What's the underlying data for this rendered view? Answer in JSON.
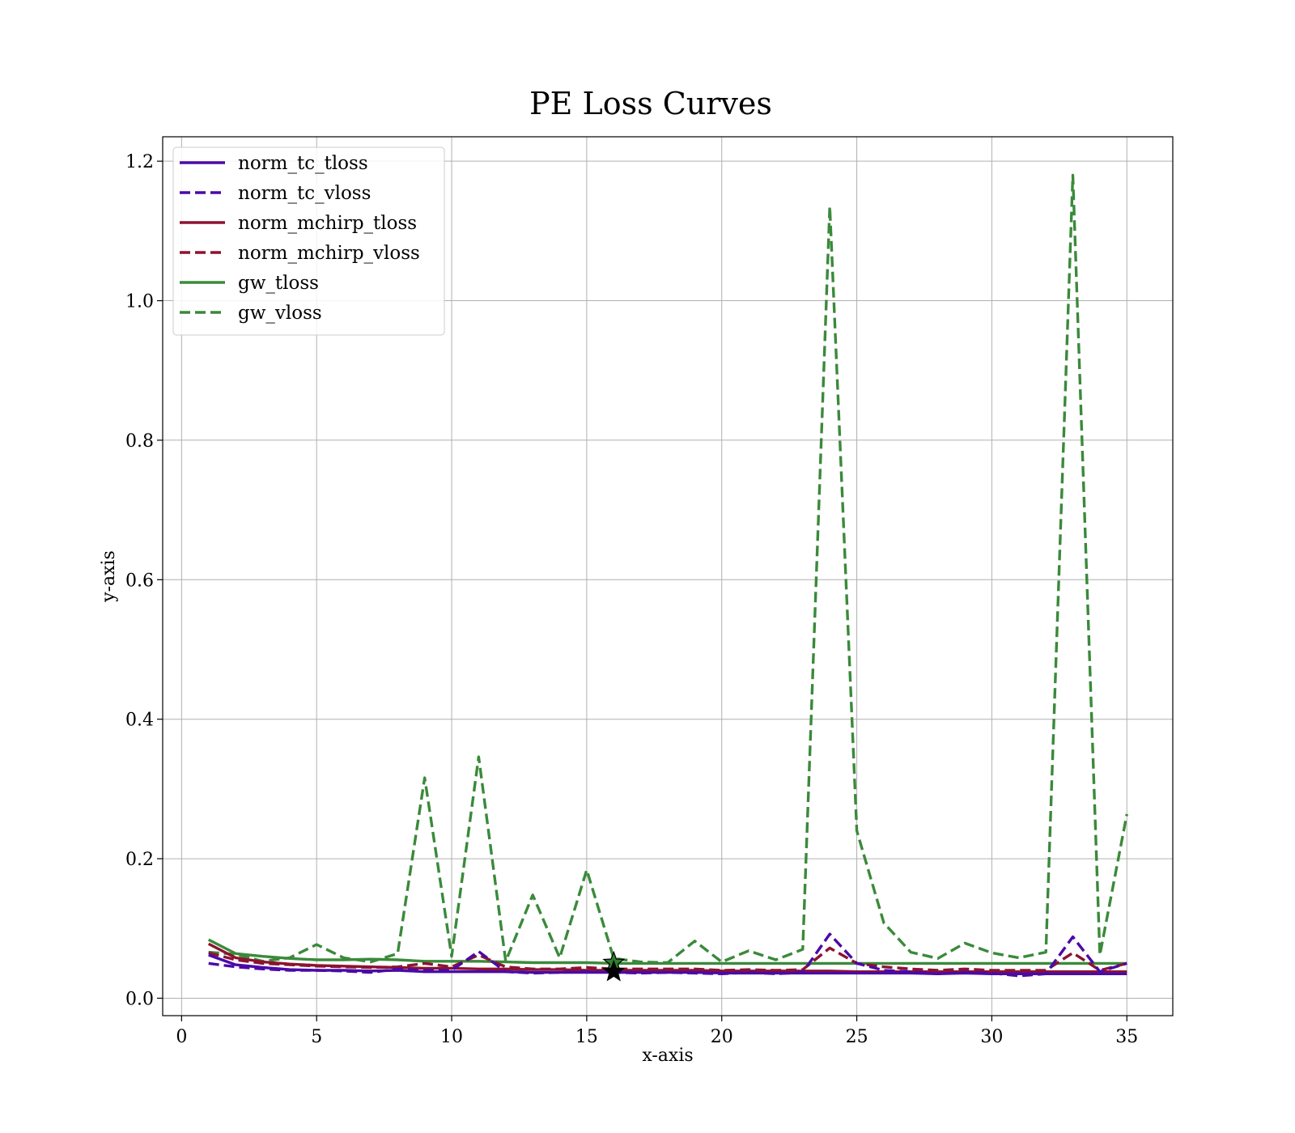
{
  "chart_data": {
    "type": "line",
    "title": "PE Loss Curves",
    "xlabel": "x-axis",
    "ylabel": "y-axis",
    "xlim": [
      -0.7,
      36.7
    ],
    "ylim": [
      -0.025,
      1.235
    ],
    "xticks": [
      0,
      5,
      10,
      15,
      20,
      25,
      30,
      35
    ],
    "xtick_labels": [
      "0",
      "5",
      "10",
      "15",
      "20",
      "25",
      "30",
      "35"
    ],
    "yticks": [
      0.0,
      0.2,
      0.4,
      0.6,
      0.8,
      1.0,
      1.2
    ],
    "ytick_labels": [
      "0.0",
      "0.2",
      "0.4",
      "0.6",
      "0.8",
      "1.0",
      "1.2"
    ],
    "grid": true,
    "legend_position": "top-left",
    "x": [
      1,
      2,
      3,
      4,
      5,
      6,
      7,
      8,
      9,
      10,
      11,
      12,
      13,
      14,
      15,
      16,
      17,
      18,
      19,
      20,
      21,
      22,
      23,
      24,
      25,
      26,
      27,
      28,
      29,
      30,
      31,
      32,
      33,
      34,
      35
    ],
    "series": [
      {
        "name": "norm_tc_tloss",
        "color": "#4b0aa8",
        "style": "solid",
        "values": [
          0.062,
          0.048,
          0.044,
          0.041,
          0.04,
          0.04,
          0.039,
          0.04,
          0.038,
          0.038,
          0.038,
          0.038,
          0.037,
          0.037,
          0.037,
          0.037,
          0.037,
          0.037,
          0.037,
          0.036,
          0.036,
          0.036,
          0.036,
          0.036,
          0.036,
          0.036,
          0.036,
          0.035,
          0.036,
          0.035,
          0.035,
          0.035,
          0.035,
          0.035,
          0.035
        ]
      },
      {
        "name": "norm_tc_vloss",
        "color": "#4b0aa8",
        "style": "dashed",
        "values": [
          0.05,
          0.045,
          0.042,
          0.04,
          0.04,
          0.039,
          0.037,
          0.042,
          0.04,
          0.04,
          0.067,
          0.038,
          0.036,
          0.037,
          0.038,
          0.037,
          0.036,
          0.037,
          0.036,
          0.035,
          0.037,
          0.035,
          0.037,
          0.092,
          0.05,
          0.04,
          0.038,
          0.035,
          0.037,
          0.036,
          0.032,
          0.035,
          0.088,
          0.038,
          0.05
        ]
      },
      {
        "name": "norm_mchirp_tloss",
        "color": "#8c1330",
        "style": "solid",
        "values": [
          0.078,
          0.058,
          0.052,
          0.049,
          0.047,
          0.046,
          0.045,
          0.044,
          0.043,
          0.043,
          0.042,
          0.042,
          0.041,
          0.041,
          0.04,
          0.04,
          0.04,
          0.04,
          0.04,
          0.039,
          0.039,
          0.039,
          0.039,
          0.039,
          0.038,
          0.038,
          0.038,
          0.038,
          0.038,
          0.038,
          0.038,
          0.038,
          0.038,
          0.038,
          0.038
        ]
      },
      {
        "name": "norm_mchirp_vloss",
        "color": "#8c1330",
        "style": "dashed",
        "values": [
          0.065,
          0.055,
          0.05,
          0.048,
          0.046,
          0.045,
          0.044,
          0.045,
          0.05,
          0.045,
          0.062,
          0.045,
          0.042,
          0.042,
          0.044,
          0.042,
          0.042,
          0.042,
          0.042,
          0.04,
          0.041,
          0.04,
          0.041,
          0.072,
          0.05,
          0.045,
          0.042,
          0.04,
          0.042,
          0.04,
          0.04,
          0.04,
          0.065,
          0.04,
          0.05
        ]
      },
      {
        "name": "gw_tloss",
        "color": "#3a8a3a",
        "style": "solid",
        "values": [
          0.084,
          0.064,
          0.06,
          0.057,
          0.055,
          0.055,
          0.056,
          0.055,
          0.053,
          0.053,
          0.053,
          0.052,
          0.051,
          0.051,
          0.051,
          0.05,
          0.05,
          0.05,
          0.05,
          0.05,
          0.05,
          0.05,
          0.05,
          0.05,
          0.05,
          0.05,
          0.05,
          0.05,
          0.05,
          0.05,
          0.05,
          0.05,
          0.05,
          0.05,
          0.05
        ]
      },
      {
        "name": "gw_vloss",
        "color": "#3a8a3a",
        "style": "dashed",
        "values": [
          0.066,
          0.063,
          0.053,
          0.058,
          0.077,
          0.058,
          0.052,
          0.064,
          0.316,
          0.06,
          0.346,
          0.053,
          0.148,
          0.058,
          0.184,
          0.057,
          0.052,
          0.051,
          0.082,
          0.052,
          0.068,
          0.055,
          0.07,
          1.135,
          0.24,
          0.108,
          0.066,
          0.057,
          0.079,
          0.065,
          0.058,
          0.066,
          1.18,
          0.062,
          0.264
        ]
      }
    ],
    "markers": [
      {
        "x": 16,
        "y": 0.051,
        "color": "#2e7d32"
      },
      {
        "x": 16,
        "y": 0.038,
        "color": "#000000"
      }
    ]
  }
}
